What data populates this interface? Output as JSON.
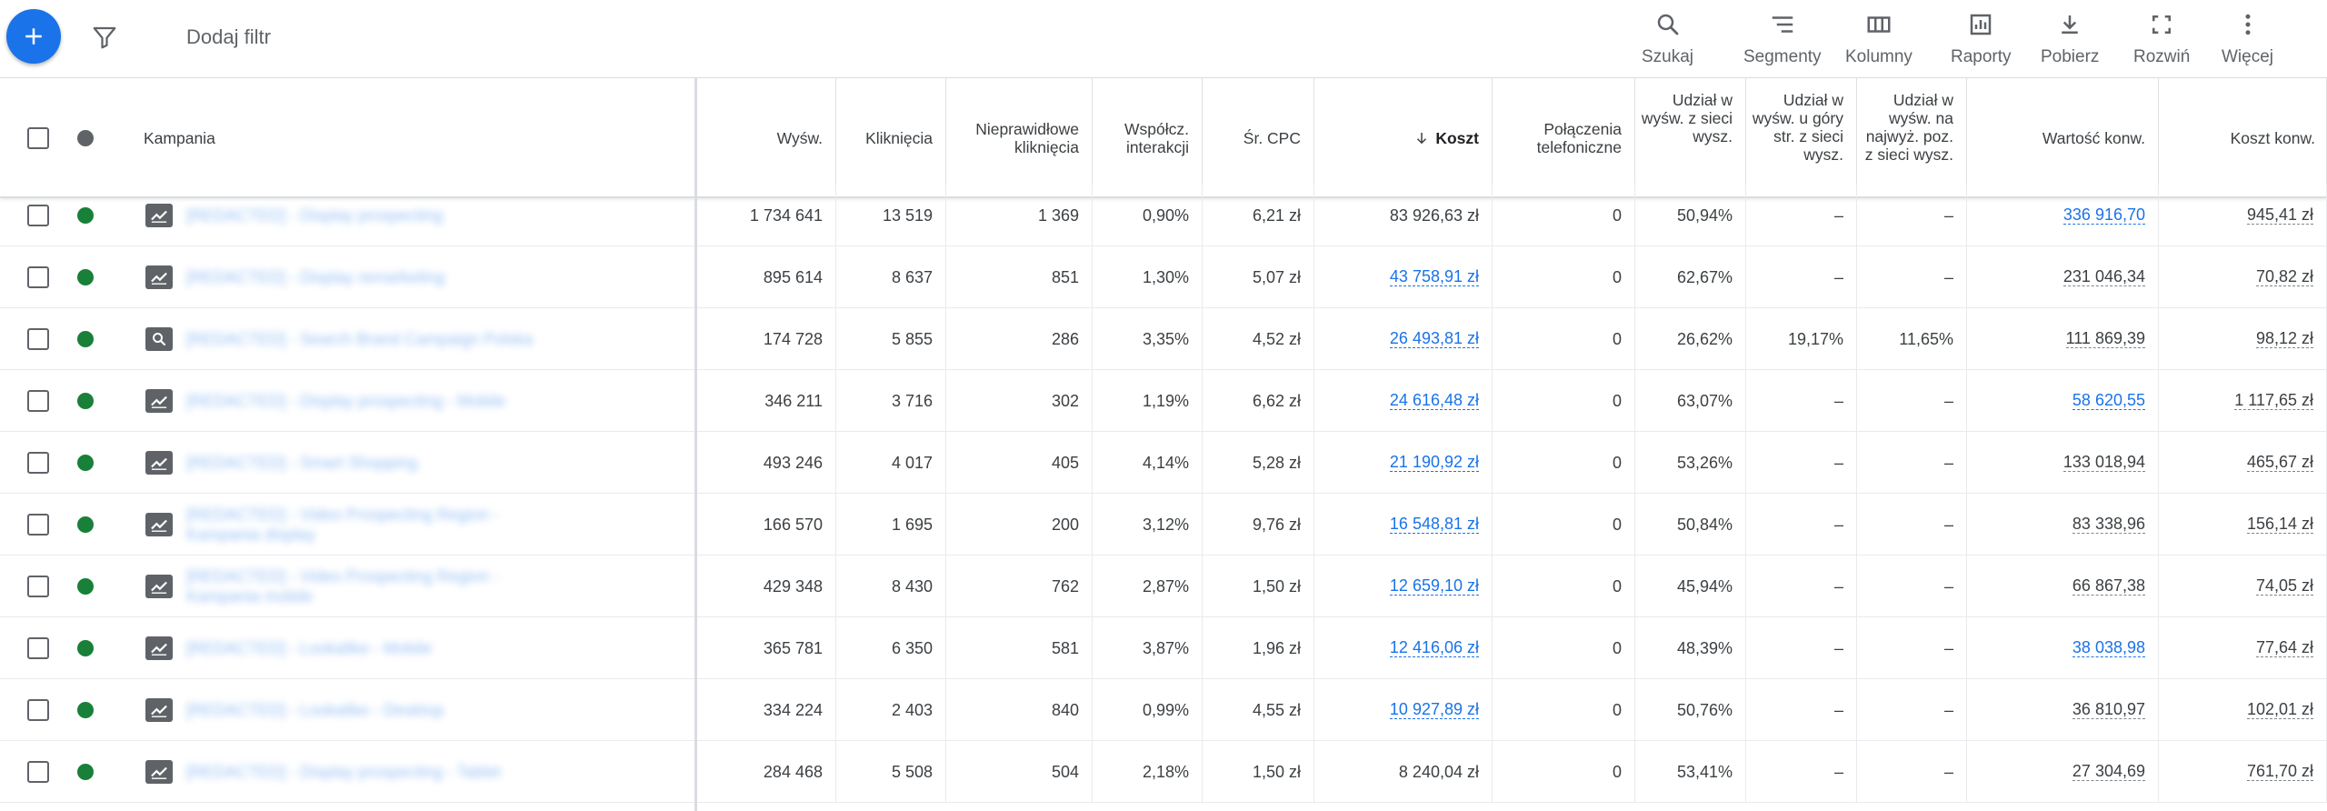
{
  "toolbar": {
    "add_filter": "Dodaj filtr",
    "buttons": [
      {
        "label": "Szukaj",
        "icon": "search-icon"
      },
      {
        "label": "Segmenty",
        "icon": "segments-icon"
      },
      {
        "label": "Kolumny",
        "icon": "columns-icon"
      },
      {
        "label": "Raporty",
        "icon": "reports-icon"
      },
      {
        "label": "Pobierz",
        "icon": "download-icon"
      },
      {
        "label": "Rozwiń",
        "icon": "fullscreen-icon"
      },
      {
        "label": "Więcej",
        "icon": "more-vert-icon"
      }
    ]
  },
  "colors": {
    "accent": "#1a73e8",
    "status_active": "#188038",
    "icon_gray": "#5f6368"
  },
  "table": {
    "headers": {
      "campaign": "Kampania",
      "impressions": "Wyśw.",
      "clicks": "Kliknięcia",
      "invalid_clicks": "Nieprawidłowe kliknięcia",
      "interaction_rate": "Współcz. interakcji",
      "avg_cpc": "Śr. CPC",
      "cost": "Koszt",
      "phone_calls": "Połączenia telefoniczne",
      "search_impr_share": "Udział w wyśw. z sieci wysz.",
      "search_top_is": "Udział w wyśw. u góry str. z sieci wysz.",
      "search_abs_top_is": "Udział w wyśw. na najwyż. poz. z sieci wysz.",
      "conv_value": "Wartość konw.",
      "cost_per_conv": "Koszt konw."
    },
    "sort_icon": "arrow-down-icon",
    "rows": [
      {
        "type": "display",
        "name": "[REDACTED] - Display prospecting",
        "impr": "1 734 641",
        "clicks": "13 519",
        "invalid": "1 369",
        "ir": "0,90%",
        "cpc": "6,21 zł",
        "cost": "83 926,63 zł",
        "cost_link": false,
        "calls": "0",
        "is": "50,94%",
        "top": "–",
        "abs": "–",
        "cv": "336 916,70",
        "cv_link": true,
        "cpc_conv": "945,41 zł"
      },
      {
        "type": "display",
        "name": "[REDACTED] - Display remarketing",
        "impr": "895 614",
        "clicks": "8 637",
        "invalid": "851",
        "ir": "1,30%",
        "cpc": "5,07 zł",
        "cost": "43 758,91 zł",
        "cost_link": true,
        "calls": "0",
        "is": "62,67%",
        "top": "–",
        "abs": "–",
        "cv": "231 046,34",
        "cv_link": false,
        "cpc_conv": "70,82 zł"
      },
      {
        "type": "search",
        "name": "[REDACTED] - Search Brand Campaign Polska",
        "impr": "174 728",
        "clicks": "5 855",
        "invalid": "286",
        "ir": "3,35%",
        "cpc": "4,52 zł",
        "cost": "26 493,81 zł",
        "cost_link": true,
        "calls": "0",
        "is": "26,62%",
        "top": "19,17%",
        "abs": "11,65%",
        "cv": "111 869,39",
        "cv_link": false,
        "cpc_conv": "98,12 zł"
      },
      {
        "type": "display",
        "name": "[REDACTED] - Display prospecting - Mobile",
        "impr": "346 211",
        "clicks": "3 716",
        "invalid": "302",
        "ir": "1,19%",
        "cpc": "6,62 zł",
        "cost": "24 616,48 zł",
        "cost_link": true,
        "calls": "0",
        "is": "63,07%",
        "top": "–",
        "abs": "–",
        "cv": "58 620,55",
        "cv_link": true,
        "cpc_conv": "1 117,65 zł"
      },
      {
        "type": "display",
        "name": "[REDACTED] - Smart Shopping",
        "impr": "493 246",
        "clicks": "4 017",
        "invalid": "405",
        "ir": "4,14%",
        "cpc": "5,28 zł",
        "cost": "21 190,92 zł",
        "cost_link": true,
        "calls": "0",
        "is": "53,26%",
        "top": "–",
        "abs": "–",
        "cv": "133 018,94",
        "cv_link": false,
        "cpc_conv": "465,67 zł"
      },
      {
        "type": "display",
        "name": "[REDACTED] - Video Prospecting Region - Kampania display",
        "impr": "166 570",
        "clicks": "1 695",
        "invalid": "200",
        "ir": "3,12%",
        "cpc": "9,76 zł",
        "cost": "16 548,81 zł",
        "cost_link": true,
        "calls": "0",
        "is": "50,84%",
        "top": "–",
        "abs": "–",
        "cv": "83 338,96",
        "cv_link": false,
        "cpc_conv": "156,14 zł"
      },
      {
        "type": "display",
        "name": "[REDACTED] - Video Prospecting Region - Kampania mobile",
        "impr": "429 348",
        "clicks": "8 430",
        "invalid": "762",
        "ir": "2,87%",
        "cpc": "1,50 zł",
        "cost": "12 659,10 zł",
        "cost_link": true,
        "calls": "0",
        "is": "45,94%",
        "top": "–",
        "abs": "–",
        "cv": "66 867,38",
        "cv_link": false,
        "cpc_conv": "74,05 zł"
      },
      {
        "type": "display",
        "name": "[REDACTED] - Lookalike - Mobile",
        "impr": "365 781",
        "clicks": "6 350",
        "invalid": "581",
        "ir": "3,87%",
        "cpc": "1,96 zł",
        "cost": "12 416,06 zł",
        "cost_link": true,
        "calls": "0",
        "is": "48,39%",
        "top": "–",
        "abs": "–",
        "cv": "38 038,98",
        "cv_link": true,
        "cpc_conv": "77,64 zł"
      },
      {
        "type": "display",
        "name": "[REDACTED] - Lookalike - Desktop",
        "impr": "334 224",
        "clicks": "2 403",
        "invalid": "840",
        "ir": "0,99%",
        "cpc": "4,55 zł",
        "cost": "10 927,89 zł",
        "cost_link": true,
        "calls": "0",
        "is": "50,76%",
        "top": "–",
        "abs": "–",
        "cv": "36 810,97",
        "cv_link": false,
        "cpc_conv": "102,01 zł"
      },
      {
        "type": "display",
        "name": "[REDACTED] - Display prospecting - Tablet",
        "impr": "284 468",
        "clicks": "5 508",
        "invalid": "504",
        "ir": "2,18%",
        "cpc": "1,50 zł",
        "cost": "8 240,04 zł",
        "cost_link": false,
        "calls": "0",
        "is": "53,41%",
        "top": "–",
        "abs": "–",
        "cv": "27 304,69",
        "cv_link": false,
        "cpc_conv": "761,70 zł"
      }
    ]
  }
}
